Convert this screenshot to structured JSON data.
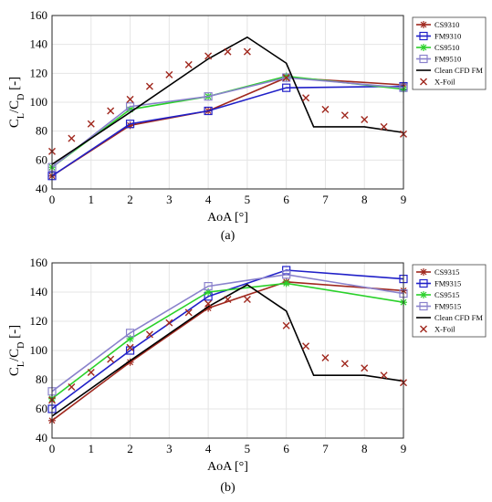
{
  "chart_data": [
    {
      "panel_label": "(a)",
      "type": "line",
      "xlabel": "AoA [°]",
      "ylabel_main": "C",
      "ylabel_sub1": "L",
      "ylabel_mid": "/C",
      "ylabel_sub2": "D",
      "ylabel_tail": " [-]",
      "xlim": [
        0,
        9
      ],
      "ylim": [
        40,
        160
      ],
      "xticks": [
        0,
        1,
        2,
        3,
        4,
        5,
        6,
        7,
        8,
        9
      ],
      "yticks": [
        40,
        60,
        80,
        100,
        120,
        140,
        160
      ],
      "grid": true,
      "legend_position": "top-right",
      "series": [
        {
          "name": "CS9310",
          "color": "#a0281e",
          "marker": "asterisk",
          "x": [
            0,
            2,
            4,
            6,
            9
          ],
          "y": [
            49,
            84,
            94,
            117,
            112
          ]
        },
        {
          "name": "FM9310",
          "color": "#2020c8",
          "marker": "square",
          "x": [
            0,
            2,
            4,
            6,
            9
          ],
          "y": [
            49,
            85,
            94,
            110,
            111
          ]
        },
        {
          "name": "CS9510",
          "color": "#2ad12a",
          "marker": "asterisk",
          "x": [
            0,
            2,
            4,
            6,
            9
          ],
          "y": [
            55,
            95,
            104,
            118,
            109
          ]
        },
        {
          "name": "FM9510",
          "color": "#8a82cc",
          "marker": "square",
          "x": [
            0,
            2,
            4,
            6,
            9
          ],
          "y": [
            55,
            97,
            104,
            117,
            110
          ]
        },
        {
          "name": "Clean CFD FM",
          "color": "#000000",
          "marker": "none",
          "x": [
            0,
            2,
            4,
            5,
            6,
            6.7,
            8,
            9
          ],
          "y": [
            57,
            93,
            130,
            145,
            127,
            83,
            83,
            79
          ]
        },
        {
          "name": "X-Foil",
          "color": "#a0281e",
          "marker": "x",
          "x": [
            0,
            0.5,
            1,
            1.5,
            2,
            2.5,
            3,
            3.5,
            4,
            4.5,
            5,
            6,
            6.5,
            7,
            7.5,
            8,
            8.5,
            9
          ],
          "y": [
            66,
            75,
            85,
            94,
            102,
            111,
            119,
            126,
            132,
            135,
            135,
            117,
            103,
            95,
            91,
            88,
            83,
            78
          ]
        }
      ]
    },
    {
      "panel_label": "(b)",
      "type": "line",
      "xlabel": "AoA [°]",
      "ylabel_main": "C",
      "ylabel_sub1": "L",
      "ylabel_mid": "/C",
      "ylabel_sub2": "D",
      "ylabel_tail": " [-]",
      "xlim": [
        0,
        9
      ],
      "ylim": [
        40,
        160
      ],
      "xticks": [
        0,
        1,
        2,
        3,
        4,
        5,
        6,
        7,
        8,
        9
      ],
      "yticks": [
        40,
        60,
        80,
        100,
        120,
        140,
        160
      ],
      "grid": true,
      "legend_position": "top-right",
      "series": [
        {
          "name": "CS9315",
          "color": "#a0281e",
          "marker": "asterisk",
          "x": [
            0,
            2,
            4,
            6,
            9
          ],
          "y": [
            52,
            92,
            129,
            147,
            141
          ]
        },
        {
          "name": "FM9315",
          "color": "#2020c8",
          "marker": "square",
          "x": [
            0,
            2,
            4,
            6,
            9
          ],
          "y": [
            60,
            100,
            137,
            155,
            149
          ]
        },
        {
          "name": "CS9515",
          "color": "#2ad12a",
          "marker": "asterisk",
          "x": [
            0,
            2,
            4,
            6,
            9
          ],
          "y": [
            67,
            108,
            140,
            146,
            133
          ]
        },
        {
          "name": "FM9515",
          "color": "#8a82cc",
          "marker": "square",
          "x": [
            0,
            2,
            4,
            6,
            9
          ],
          "y": [
            72,
            112,
            144,
            152,
            139
          ]
        },
        {
          "name": "Clean CFD FM",
          "color": "#000000",
          "marker": "none",
          "x": [
            0,
            2,
            4,
            5,
            6,
            6.7,
            8,
            9
          ],
          "y": [
            55,
            93,
            130,
            145,
            127,
            83,
            83,
            79
          ]
        },
        {
          "name": "X-Foil",
          "color": "#a0281e",
          "marker": "x",
          "x": [
            0,
            0.5,
            1,
            1.5,
            2,
            2.5,
            3,
            3.5,
            4,
            4.5,
            5,
            6,
            6.5,
            7,
            7.5,
            8,
            8.5,
            9
          ],
          "y": [
            66,
            75,
            85,
            94,
            102,
            111,
            119,
            126,
            132,
            135,
            135,
            117,
            103,
            95,
            91,
            88,
            83,
            78
          ]
        }
      ]
    }
  ]
}
